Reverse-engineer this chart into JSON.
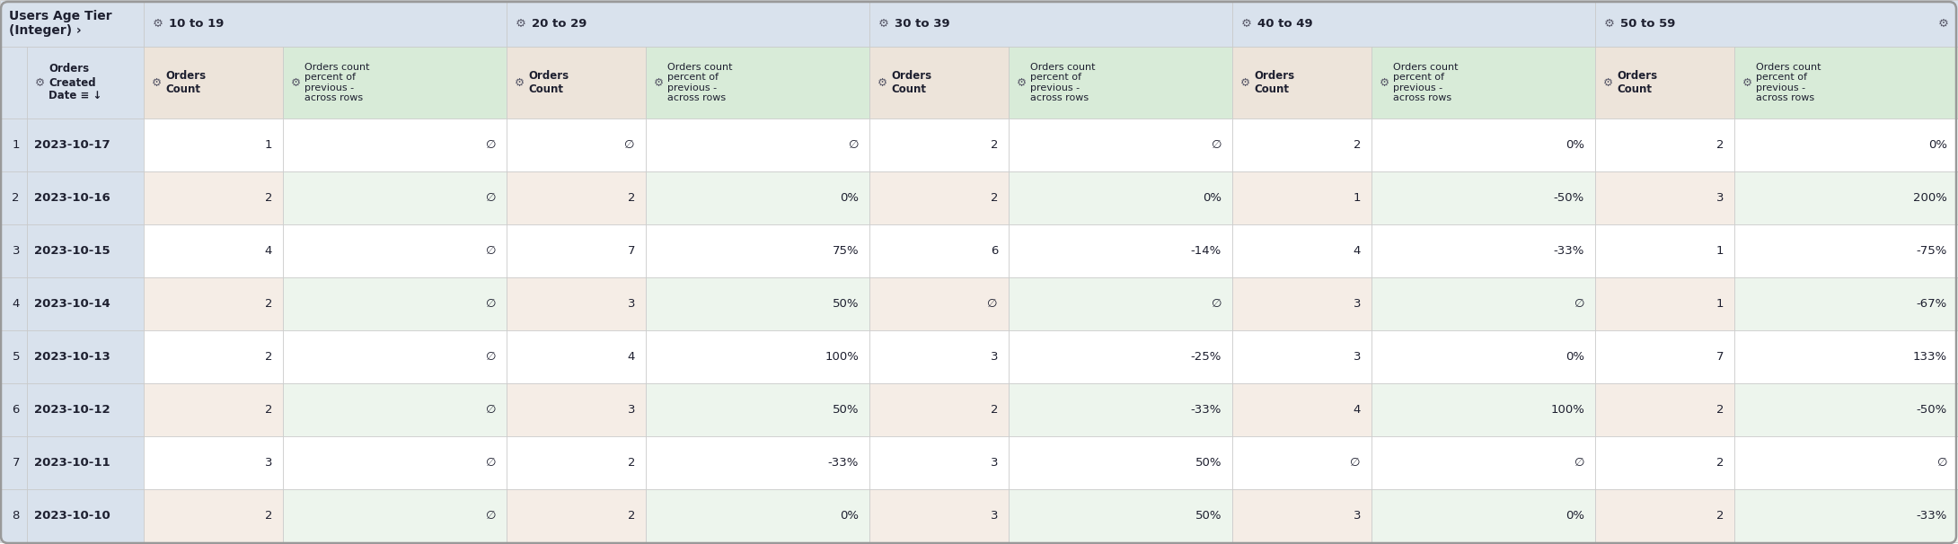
{
  "figsize": [
    21.8,
    6.06
  ],
  "dpi": 100,
  "groups": [
    "10 to 19",
    "20 to 29",
    "30 to 39",
    "40 to 49",
    "50 to 59"
  ],
  "data_rows": [
    {
      "idx": "1",
      "date": "2023-10-17",
      "c10": "1",
      "p10": "∅",
      "c20": "∅",
      "p20": "∅",
      "c30": "2",
      "p30": "∅",
      "c40": "2",
      "p40": "0%",
      "c50": "2",
      "p50": "0%"
    },
    {
      "idx": "2",
      "date": "2023-10-16",
      "c10": "2",
      "p10": "∅",
      "c20": "2",
      "p20": "0%",
      "c30": "2",
      "p30": "0%",
      "c40": "1",
      "p40": "-50%",
      "c50": "3",
      "p50": "200%"
    },
    {
      "idx": "3",
      "date": "2023-10-15",
      "c10": "4",
      "p10": "∅",
      "c20": "7",
      "p20": "75%",
      "c30": "6",
      "p30": "-14%",
      "c40": "4",
      "p40": "-33%",
      "c50": "1",
      "p50": "-75%"
    },
    {
      "idx": "4",
      "date": "2023-10-14",
      "c10": "2",
      "p10": "∅",
      "c20": "3",
      "p20": "50%",
      "c30": "∅",
      "p30": "∅",
      "c40": "3",
      "p40": "∅",
      "c50": "1",
      "p50": "-67%"
    },
    {
      "idx": "5",
      "date": "2023-10-13",
      "c10": "2",
      "p10": "∅",
      "c20": "4",
      "p20": "100%",
      "c30": "3",
      "p30": "-25%",
      "c40": "3",
      "p40": "0%",
      "c50": "7",
      "p50": "133%"
    },
    {
      "idx": "6",
      "date": "2023-10-12",
      "c10": "2",
      "p10": "∅",
      "c20": "3",
      "p20": "50%",
      "c30": "2",
      "p30": "-33%",
      "c40": "4",
      "p40": "100%",
      "c50": "2",
      "p50": "-50%"
    },
    {
      "idx": "7",
      "date": "2023-10-11",
      "c10": "3",
      "p10": "∅",
      "c20": "2",
      "p20": "-33%",
      "c30": "3",
      "p30": "50%",
      "c40": "∅",
      "p40": "∅",
      "c50": "2",
      "p50": "∅"
    },
    {
      "idx": "8",
      "date": "2023-10-10",
      "c10": "2",
      "p10": "∅",
      "c20": "2",
      "p20": "0%",
      "c30": "3",
      "p30": "50%",
      "c40": "3",
      "p40": "0%",
      "c50": "2",
      "p50": "-33%"
    }
  ],
  "colors": {
    "header_blue": "#d9e2ed",
    "header_count": "#ede4da",
    "header_pct": "#d8ebd8",
    "row_white": "#ffffff",
    "row_white_count": "#faf6f2",
    "row_green": "#edf5ed",
    "row_green_count": "#f5ede6",
    "border": "#c8c8c8",
    "text": "#1e2030",
    "gear": "#5a5a6a"
  },
  "font_data": 9.5,
  "font_header": 8.5,
  "font_group": 9.5,
  "font_title": 10.0
}
